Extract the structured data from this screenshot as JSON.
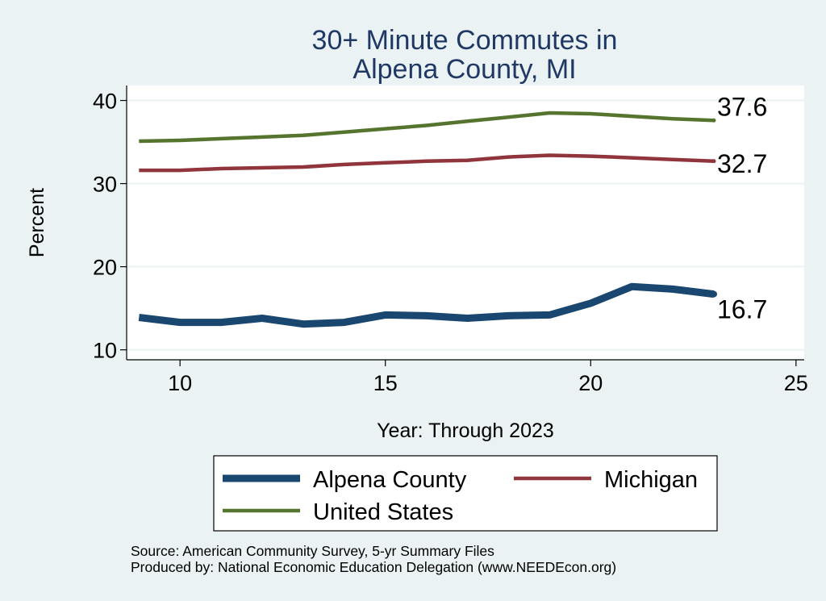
{
  "chart_data": {
    "type": "line",
    "title": [
      "30+ Minute Commutes in",
      "Alpena County, MI"
    ],
    "xlabel": "Year: Through 2023",
    "ylabel": "Percent",
    "xlim": [
      8.7,
      25.2
    ],
    "ylim": [
      8.8,
      41.8
    ],
    "xticks": [
      10,
      15,
      20,
      25
    ],
    "yticks": [
      10,
      20,
      30,
      40
    ],
    "grid": true,
    "legend_position": "bottom",
    "series": [
      {
        "name": "Alpena County",
        "color": "#1A476F",
        "x": [
          9,
          10,
          11,
          12,
          13,
          14,
          15,
          16,
          17,
          18,
          19,
          20,
          21,
          22,
          23
        ],
        "y": [
          13.9,
          13.3,
          13.3,
          13.8,
          13.1,
          13.3,
          14.2,
          14.1,
          13.8,
          14.1,
          14.2,
          15.6,
          17.6,
          17.3,
          16.7
        ],
        "end_label": "16.7"
      },
      {
        "name": "Michigan",
        "color": "#90353B",
        "x": [
          9,
          10,
          11,
          12,
          13,
          14,
          15,
          16,
          17,
          18,
          19,
          20,
          21,
          22,
          23
        ],
        "y": [
          31.6,
          31.6,
          31.8,
          31.9,
          32.0,
          32.3,
          32.5,
          32.7,
          32.8,
          33.2,
          33.4,
          33.3,
          33.1,
          32.9,
          32.7
        ],
        "end_label": "32.7"
      },
      {
        "name": "United States",
        "color": "#55752F",
        "x": [
          9,
          10,
          11,
          12,
          13,
          14,
          15,
          16,
          17,
          18,
          19,
          20,
          21,
          22,
          23
        ],
        "y": [
          35.1,
          35.2,
          35.4,
          35.6,
          35.8,
          36.2,
          36.6,
          37.0,
          37.5,
          38.0,
          38.5,
          38.4,
          38.1,
          37.8,
          37.6
        ],
        "end_label": "37.6"
      }
    ],
    "notes": [
      "Source: American Community Survey, 5-yr Summary Files",
      "Produced by: National Economic Education Delegation (www.NEEDEcon.org)"
    ]
  }
}
